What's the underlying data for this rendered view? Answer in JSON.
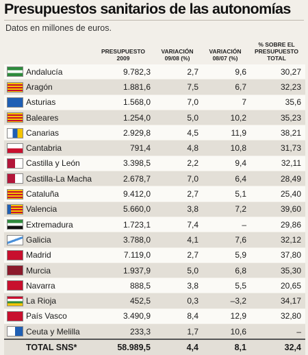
{
  "title": "Presupuestos sanitarios de las autonomías",
  "subtitle": "Datos en millones de euros.",
  "columns": {
    "presupuesto": "PRESUPUESTO 2009",
    "var_09_08": "VARIACIÓN 09/08 (%)",
    "var_08_07": "VARIACIÓN 08/07 (%)",
    "pct_total": "% SOBRE EL PRESUPUESTO TOTAL"
  },
  "rows": [
    {
      "name": "Andalucía",
      "presupuesto": "9.782,3",
      "var_09_08": "2,7",
      "var_08_07": "9,6",
      "pct_total": "30,27",
      "flag": "andalucia-flag-icon"
    },
    {
      "name": "Aragón",
      "presupuesto": "1.881,6",
      "var_09_08": "7,5",
      "var_08_07": "6,7",
      "pct_total": "32,23",
      "flag": "aragon-flag-icon"
    },
    {
      "name": "Asturias",
      "presupuesto": "1.568,0",
      "var_09_08": "7,0",
      "var_08_07": "7",
      "pct_total": "35,6",
      "flag": "asturias-flag-icon"
    },
    {
      "name": "Baleares",
      "presupuesto": "1.254,0",
      "var_09_08": "5,0",
      "var_08_07": "10,2",
      "pct_total": "35,23",
      "flag": "baleares-flag-icon"
    },
    {
      "name": "Canarias",
      "presupuesto": "2.929,8",
      "var_09_08": "4,5",
      "var_08_07": "11,9",
      "pct_total": "38,21",
      "flag": "canarias-flag-icon"
    },
    {
      "name": "Cantabria",
      "presupuesto": "791,4",
      "var_09_08": "4,8",
      "var_08_07": "10,8",
      "pct_total": "31,73",
      "flag": "cantabria-flag-icon"
    },
    {
      "name": "Castilla y León",
      "presupuesto": "3.398,5",
      "var_09_08": "2,2",
      "var_08_07": "9,4",
      "pct_total": "32,11",
      "flag": "castilla-leon-flag-icon"
    },
    {
      "name": "Castilla-La Macha",
      "presupuesto": "2.678,7",
      "var_09_08": "7,0",
      "var_08_07": "6,4",
      "pct_total": "28,49",
      "flag": "castilla-la-mancha-flag-icon"
    },
    {
      "name": "Cataluña",
      "presupuesto": "9.412,0",
      "var_09_08": "2,7",
      "var_08_07": "5,1",
      "pct_total": "25,40",
      "flag": "cataluna-flag-icon"
    },
    {
      "name": "Valencia",
      "presupuesto": "5.660,0",
      "var_09_08": "3,8",
      "var_08_07": "7,2",
      "pct_total": "39,60",
      "flag": "valencia-flag-icon"
    },
    {
      "name": "Extremadura",
      "presupuesto": "1.723,1",
      "var_09_08": "7,4",
      "var_08_07": "–",
      "pct_total": "29,86",
      "flag": "extremadura-flag-icon"
    },
    {
      "name": "Galicia",
      "presupuesto": "3.788,0",
      "var_09_08": "4,1",
      "var_08_07": "7,6",
      "pct_total": "32,12",
      "flag": "galicia-flag-icon"
    },
    {
      "name": "Madrid",
      "presupuesto": "7.119,0",
      "var_09_08": "2,7",
      "var_08_07": "5,9",
      "pct_total": "37,80",
      "flag": "madrid-flag-icon"
    },
    {
      "name": "Murcia",
      "presupuesto": "1.937,9",
      "var_09_08": "5,0",
      "var_08_07": "6,8",
      "pct_total": "35,30",
      "flag": "murcia-flag-icon"
    },
    {
      "name": "Navarra",
      "presupuesto": "888,5",
      "var_09_08": "3,8",
      "var_08_07": "5,5",
      "pct_total": "20,65",
      "flag": "navarra-flag-icon"
    },
    {
      "name": "La Rioja",
      "presupuesto": "452,5",
      "var_09_08": "0,3",
      "var_08_07": "–3,2",
      "pct_total": "34,17",
      "flag": "la-rioja-flag-icon"
    },
    {
      "name": "País Vasco",
      "presupuesto": "3.490,9",
      "var_09_08": "8,4",
      "var_08_07": "12,9",
      "pct_total": "32,80",
      "flag": "pais-vasco-flag-icon"
    },
    {
      "name": "Ceuta y Melilla",
      "presupuesto": "233,3",
      "var_09_08": "1,7",
      "var_08_07": "10,6",
      "pct_total": "–",
      "flag": "ceuta-melilla-flag-icon"
    }
  ],
  "total": {
    "name": "TOTAL SNS*",
    "presupuesto": "58.989,5",
    "var_09_08": "4,4",
    "var_08_07": "8,1",
    "pct_total": "32,4"
  },
  "colors": {
    "background": "#f2efe9",
    "row_light": "#fbfaf6",
    "row_dark": "#e3dfd7"
  }
}
